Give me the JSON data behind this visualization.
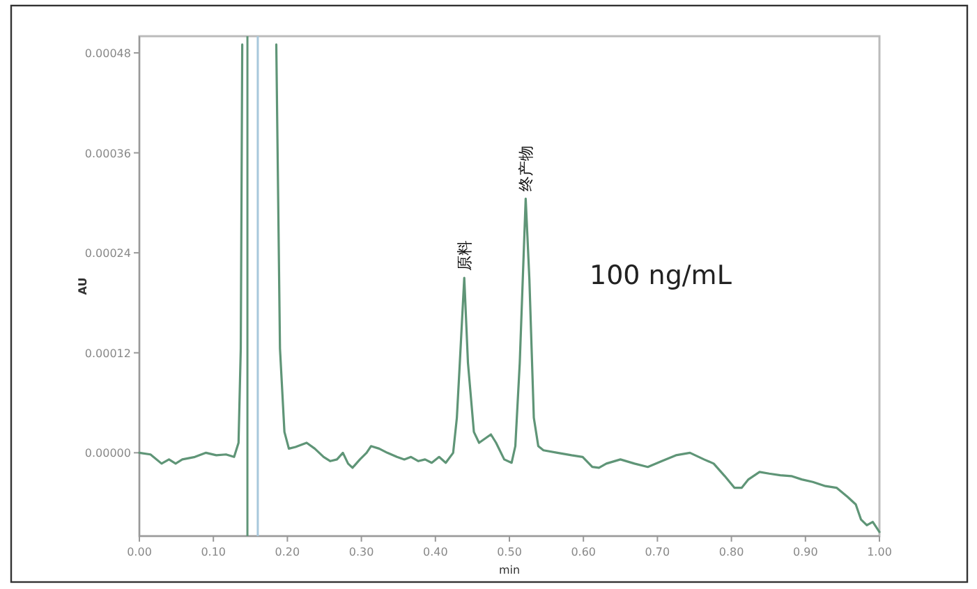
{
  "chart_data": {
    "type": "line",
    "xlabel": "min",
    "ylabel": "AU",
    "xlim": [
      0,
      1
    ],
    "ylim": [
      -0.0001,
      0.0005
    ],
    "xticks": [
      {
        "value": 0,
        "label": "0.00"
      },
      {
        "value": 0.1,
        "label": "0.10"
      },
      {
        "value": 0.2,
        "label": "0.20"
      },
      {
        "value": 0.3,
        "label": "0.30"
      },
      {
        "value": 0.4,
        "label": "0.40"
      },
      {
        "value": 0.5,
        "label": "0.50"
      },
      {
        "value": 0.6,
        "label": "0.60"
      },
      {
        "value": 0.7,
        "label": "0.70"
      },
      {
        "value": 0.8,
        "label": "0.80"
      },
      {
        "value": 0.9,
        "label": "0.90"
      },
      {
        "value": 1,
        "label": "1.00"
      }
    ],
    "yticks": [
      {
        "value": 0,
        "label": "0.00000"
      },
      {
        "value": 0.00012,
        "label": "0.00012"
      },
      {
        "value": 0.00024,
        "label": "0.00024"
      },
      {
        "value": 0.00036,
        "label": "0.00036"
      },
      {
        "value": 0.00048,
        "label": "0.00048"
      }
    ],
    "marker": "none",
    "line_style": "solid",
    "series": [
      {
        "color": "#5f9577",
        "x": [
          0,
          0.015,
          0.03,
          0.04,
          0.049,
          0.058,
          0.075,
          0.09,
          0.104,
          0.117,
          0.128,
          0.134,
          0.137,
          0.139,
          0.16,
          0.185,
          0.19,
          0.196,
          0.202,
          0.211,
          0.226,
          0.237,
          0.249,
          0.258,
          0.267,
          0.275,
          0.282,
          0.288,
          0.298,
          0.307,
          0.313,
          0.324,
          0.335,
          0.348,
          0.358,
          0.367,
          0.377,
          0.386,
          0.395,
          0.405,
          0.414,
          0.424,
          0.429,
          0.433,
          0.439,
          0.444,
          0.452,
          0.459,
          0.475,
          0.482,
          0.493,
          0.503,
          0.508,
          0.514,
          0.522,
          0.527,
          0.533,
          0.539,
          0.546,
          0.565,
          0.584,
          0.599,
          0.612,
          0.621,
          0.631,
          0.65,
          0.669,
          0.687,
          0.706,
          0.725,
          0.744,
          0.763,
          0.776,
          0.791,
          0.804,
          0.814,
          0.823,
          0.838,
          0.851,
          0.866,
          0.881,
          0.895,
          0.91,
          0.927,
          0.942,
          0.957,
          0.968,
          0.975,
          0.983,
          0.991,
          1.0
        ],
        "values": [
          0,
          -2e-06,
          -1.3e-05,
          -8e-06,
          -1.3e-05,
          -8e-06,
          -5e-06,
          0,
          -3e-06,
          -2e-06,
          -5e-06,
          1.2e-05,
          0.000125,
          0.00049,
          null,
          0.00049,
          0.000125,
          2.5e-05,
          5e-06,
          7e-06,
          1.2e-05,
          5e-06,
          -5e-06,
          -1e-05,
          -8e-06,
          0,
          -1.3e-05,
          -1.8e-05,
          -8e-06,
          0,
          8e-06,
          5e-06,
          0,
          -5e-06,
          -8e-06,
          -5e-06,
          -1e-05,
          -8e-06,
          -1.2e-05,
          -5e-06,
          -1.2e-05,
          0,
          4.2e-05,
          0.000108,
          0.00021,
          0.000108,
          2.5e-05,
          1.2e-05,
          2.2e-05,
          1.2e-05,
          -8e-06,
          -1.2e-05,
          8e-06,
          0.000108,
          0.000305,
          0.000208,
          4.2e-05,
          8e-06,
          3e-06,
          0,
          -3e-06,
          -5e-06,
          -1.7e-05,
          -1.8e-05,
          -1.3e-05,
          -8e-06,
          -1.3e-05,
          -1.7e-05,
          -1e-05,
          -3e-06,
          0,
          -8e-06,
          -1.3e-05,
          -2.8e-05,
          -4.2e-05,
          -4.2e-05,
          -3.2e-05,
          -2.3e-05,
          -2.5e-05,
          -2.7e-05,
          -2.8e-05,
          -3.2e-05,
          -3.5e-05,
          -4e-05,
          -4.2e-05,
          -5.3e-05,
          -6.2e-05,
          -8e-05,
          -8.7e-05,
          -8.3e-05,
          -9.5e-05
        ]
      }
    ],
    "ref_lines": [
      {
        "axis": "x",
        "value": 0.146,
        "color": "#5f9577"
      },
      {
        "axis": "x",
        "value": 0.16,
        "color": "#a8c8dc"
      }
    ],
    "annotations": [
      {
        "text": "原料",
        "x": 0.439,
        "y": 0.00021
      },
      {
        "text": "终产物",
        "x": 0.522,
        "y": 0.000305
      },
      "100 ng/mL"
    ]
  }
}
